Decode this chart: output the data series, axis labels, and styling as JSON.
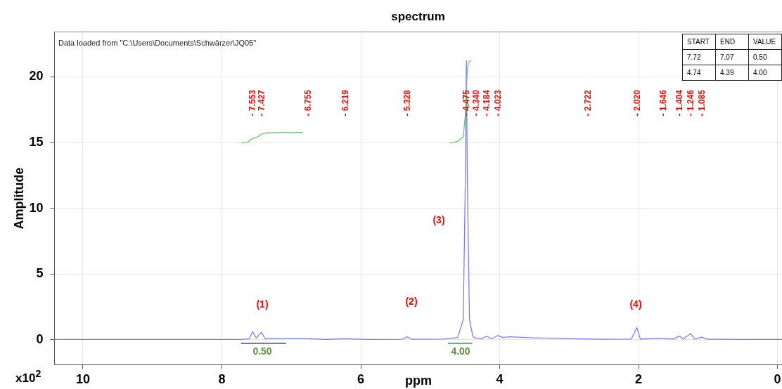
{
  "chart_data": {
    "type": "line",
    "title": "spectrum",
    "xlabel": "ppm",
    "ylabel": "Amplitude",
    "xlim": [
      10.41,
      -0.07
    ],
    "xticks": [
      10,
      8,
      6,
      4,
      2,
      0
    ],
    "ylim": [
      -1.9,
      23.4
    ],
    "yticks": [
      0,
      5,
      10,
      15,
      20
    ],
    "grid": true,
    "marker": "none",
    "line_style": "solid",
    "series": [
      {
        "color": "#7b7bff",
        "x": [
          10.41,
          8.0,
          7.7,
          7.6,
          7.553,
          7.5,
          7.427,
          7.37,
          7.2,
          6.755,
          6.5,
          6.219,
          5.9,
          5.4,
          5.328,
          5.26,
          4.8,
          4.6,
          4.52,
          4.49,
          4.475,
          4.46,
          4.43,
          4.38,
          4.34,
          4.26,
          4.184,
          4.11,
          4.023,
          3.95,
          3.85,
          3.5,
          3.0,
          2.5,
          2.1,
          2.02,
          1.97,
          1.7,
          1.5,
          1.404,
          1.35,
          1.246,
          1.19,
          1.085,
          1.0,
          0.5,
          -0.07
        ],
        "values": [
          0,
          0,
          0,
          0.05,
          0.6,
          0.1,
          0.55,
          0.05,
          0.05,
          0.05,
          0,
          0.05,
          0,
          0.02,
          0.2,
          0.02,
          0.03,
          0.15,
          1.5,
          12,
          21.2,
          12,
          1.5,
          0.2,
          0.12,
          0.05,
          0.25,
          0.05,
          0.3,
          0.15,
          0.2,
          0.12,
          0.05,
          0.02,
          0.03,
          0.9,
          0.03,
          0.08,
          0.03,
          0.25,
          0.03,
          0.45,
          0.03,
          0.18,
          0.02,
          0,
          0
        ]
      },
      {
        "color": "#66cc66",
        "x": [
          7.72,
          7.62,
          7.55,
          7.48,
          7.43,
          7.35,
          7.2,
          7.0,
          6.83
        ],
        "values": [
          14.93,
          15.0,
          15.3,
          15.4,
          15.6,
          15.7,
          15.72,
          15.73,
          15.73
        ]
      },
      {
        "color": "#66cc66",
        "x": [
          4.71,
          4.6,
          4.52,
          4.49,
          4.475,
          4.46,
          4.44,
          4.41
        ],
        "values": [
          14.93,
          15.05,
          15.4,
          17,
          19,
          20.6,
          21.1,
          21.2
        ]
      },
      {
        "color": "#555555",
        "x": [
          7.72,
          7.07
        ],
        "values": [
          -0.3,
          -0.3
        ]
      },
      {
        "color": "#3d9a3d",
        "x": [
          4.74,
          4.39
        ],
        "values": [
          -0.3,
          -0.3
        ]
      }
    ],
    "annotations": [
      "Data loaded from \"C:\\Users\\Documents\\Schwärzer\\JQ05\"",
      "x10$^{2}$",
      "START",
      "END",
      "VALUE",
      "7.72",
      "7.07",
      "0.50",
      "4.74",
      "4.39",
      "4.00",
      "(1)",
      "(2)",
      "(3)",
      "(4)",
      "0.50",
      "4.00",
      "- 7.553",
      "- 7.427",
      "- 6.755",
      "- 6.219",
      "- 5.328",
      "- 4.475",
      "- 4.340",
      "- 4.184",
      "- 4.023",
      "- 2.722",
      "- 2.020",
      "- 1.646",
      "- 1.404",
      "- 1.246",
      "- 1.085"
    ]
  }
}
